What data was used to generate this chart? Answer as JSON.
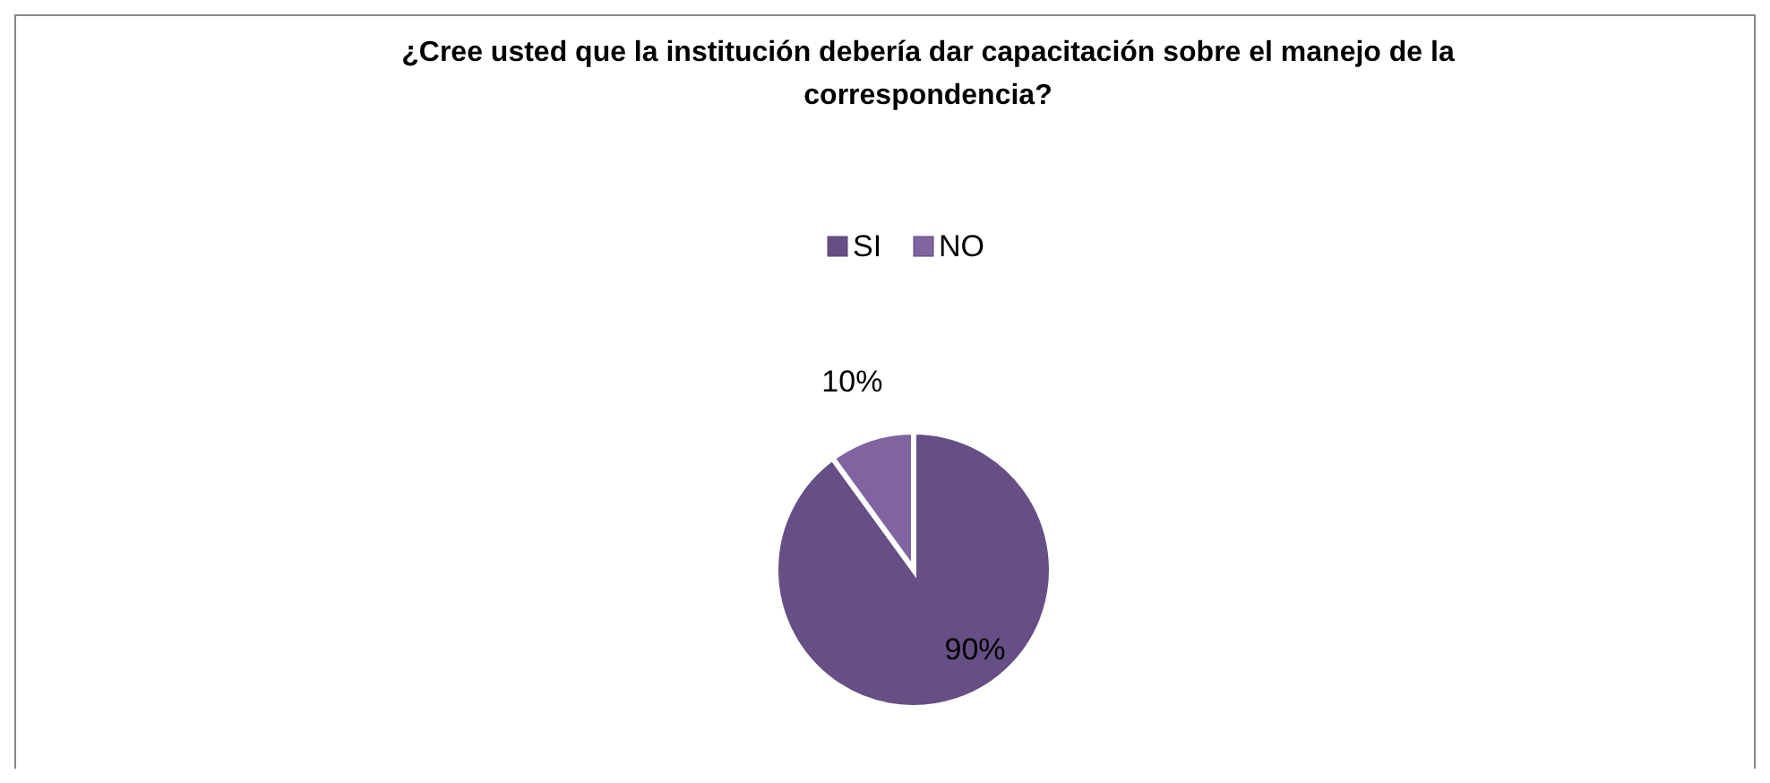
{
  "chart_data": {
    "type": "pie",
    "title": "¿Cree usted que la institución debería dar capacitación sobre el manejo de la correspondencia?",
    "categories": [
      "SI",
      "NO"
    ],
    "values": [
      90,
      10
    ],
    "value_labels": [
      "90%",
      "10%"
    ],
    "colors": [
      "#664f84",
      "#8064a2"
    ],
    "legend": "top"
  }
}
